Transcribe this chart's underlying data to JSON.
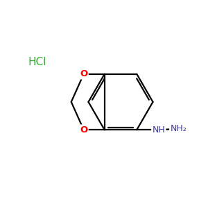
{
  "background_color": "#ffffff",
  "bond_color": "#000000",
  "oxygen_color": "#ff0000",
  "nitrogen_color": "#3939aa",
  "hcl_color": "#33aa33",
  "hcl_text": "HCl",
  "nh_text": "NH",
  "nh2_text": "NH₂",
  "o_text": "O",
  "figsize": [
    3.0,
    3.0
  ],
  "dpi": 100,
  "bx": 5.8,
  "by": 5.1,
  "br": 1.55,
  "lw": 1.6
}
